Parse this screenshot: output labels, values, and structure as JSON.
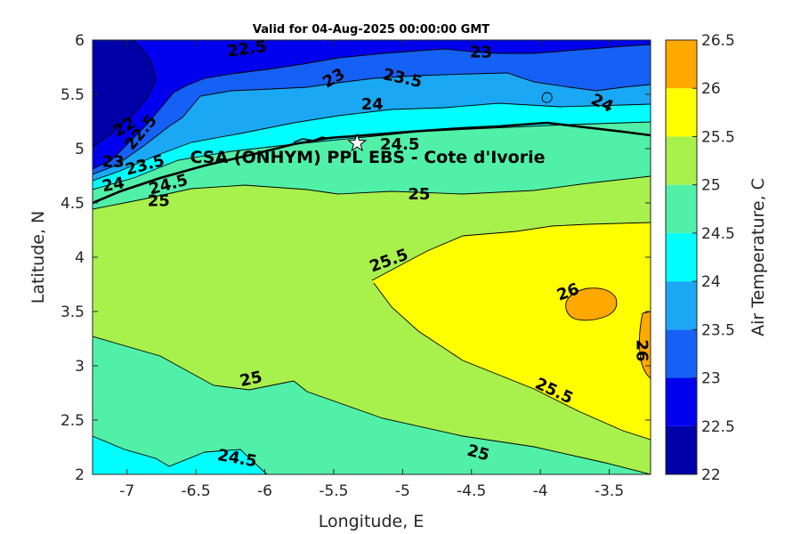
{
  "chart_data": {
    "type": "contour",
    "title": "Valid for 04-Aug-2025 00:00:00 GMT",
    "xlabel": "Longitude, E",
    "ylabel": "Latitude, N",
    "xlim": [
      -7.25,
      -3.2
    ],
    "ylim": [
      2,
      6
    ],
    "xticks": [
      "-7",
      "-6.5",
      "-6",
      "-5.5",
      "-5",
      "-4.5",
      "-4",
      "-3.5"
    ],
    "yticks": [
      "2",
      "2.5",
      "3",
      "3.5",
      "4",
      "4.5",
      "5",
      "5.5",
      "6"
    ],
    "colorbar": {
      "label": "Air Temperature, C",
      "levels": [
        22,
        22.5,
        23,
        23.5,
        24,
        24.5,
        25,
        25.5,
        26,
        26.5
      ],
      "tick_labels": [
        "22",
        "22.5",
        "23",
        "23.5",
        "24",
        "24.5",
        "25",
        "25.5",
        "26",
        "26.5"
      ],
      "colors": [
        "#0000a8",
        "#0000ee",
        "#1560f5",
        "#1aa8f5",
        "#00ffff",
        "#50f0a8",
        "#a8f04c",
        "#ffff00",
        "#ffa800",
        "#ff5a00"
      ]
    },
    "site": {
      "name": "CSA (ONHYM) PPL EBS  - Cote d'Ivorie",
      "lon": -5.33,
      "lat": 5.05
    },
    "contour_labels": [
      {
        "text": "22.5",
        "lon": -6.13,
        "lat": 5.92,
        "rot": -8
      },
      {
        "text": "23",
        "lon": -4.43,
        "lat": 5.89,
        "rot": 0
      },
      {
        "text": "23",
        "lon": -5.5,
        "lat": 5.65,
        "rot": -30
      },
      {
        "text": "23.5",
        "lon": -5.0,
        "lat": 5.65,
        "rot": 12
      },
      {
        "text": "22",
        "lon": -7.02,
        "lat": 5.2,
        "rot": -30
      },
      {
        "text": "22.5",
        "lon": -6.9,
        "lat": 5.15,
        "rot": -50
      },
      {
        "text": "24",
        "lon": -5.22,
        "lat": 5.41,
        "rot": 0
      },
      {
        "text": "24",
        "lon": -3.55,
        "lat": 5.42,
        "rot": 25
      },
      {
        "text": "24.5",
        "lon": -5.02,
        "lat": 5.04,
        "rot": 0
      },
      {
        "text": "23",
        "lon": -7.1,
        "lat": 4.88,
        "rot": 0
      },
      {
        "text": "23.5",
        "lon": -6.87,
        "lat": 4.85,
        "rot": -15
      },
      {
        "text": "24",
        "lon": -7.1,
        "lat": 4.67,
        "rot": -10
      },
      {
        "text": "24.5",
        "lon": -6.7,
        "lat": 4.67,
        "rot": -15
      },
      {
        "text": "25",
        "lon": -6.77,
        "lat": 4.52,
        "rot": 0
      },
      {
        "text": "25",
        "lon": -4.88,
        "lat": 4.58,
        "rot": 0
      },
      {
        "text": "25.5",
        "lon": -5.1,
        "lat": 3.97,
        "rot": -20
      },
      {
        "text": "26",
        "lon": -3.8,
        "lat": 3.68,
        "rot": -20
      },
      {
        "text": "26",
        "lon": -3.26,
        "lat": 3.14,
        "rot": 90
      },
      {
        "text": "25",
        "lon": -6.1,
        "lat": 2.88,
        "rot": -12
      },
      {
        "text": "25.5",
        "lon": -3.9,
        "lat": 2.77,
        "rot": 25
      },
      {
        "text": "24.5",
        "lon": -6.2,
        "lat": 2.15,
        "rot": 10
      },
      {
        "text": "25",
        "lon": -4.45,
        "lat": 2.2,
        "rot": 15
      }
    ]
  }
}
